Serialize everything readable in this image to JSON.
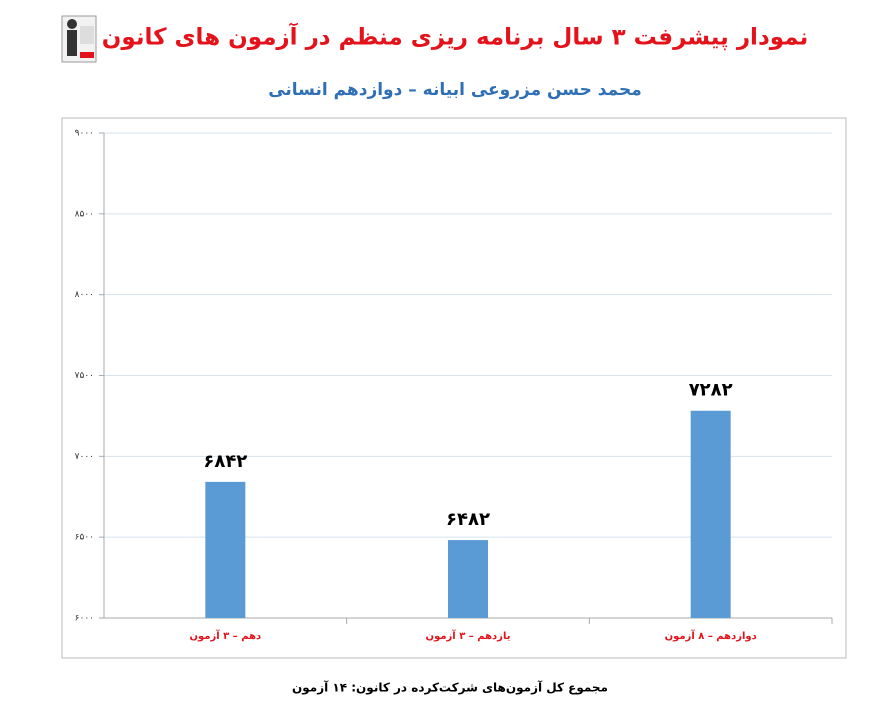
{
  "chart_data": {
    "type": "bar",
    "title": "نمودار پیشرفت ۳ سال برنامه ریزی منظم در آزمون های کانون",
    "subtitle": "محمد حسن مزروعی ابیانه – دوازدهم انسانی",
    "categories": [
      "دهم – ۳ آزمون",
      "یازدهم – ۳ آزمون",
      "دوازدهم – ۸ آزمون"
    ],
    "values": [
      6842,
      6482,
      7282
    ],
    "value_labels": [
      "۶۸۴۲",
      "۶۴۸۲",
      "۷۲۸۲"
    ],
    "color": "#5b9bd5",
    "ylim": [
      6000,
      9000
    ],
    "yticks": [
      {
        "value": 6000,
        "label": "۶۰۰۰"
      },
      {
        "value": 6500,
        "label": "۶۵۰۰"
      },
      {
        "value": 7000,
        "label": "۷۰۰۰"
      },
      {
        "value": 7500,
        "label": "۷۵۰۰"
      },
      {
        "value": 8000,
        "label": "۸۰۰۰"
      },
      {
        "value": 8500,
        "label": "۸۵۰۰"
      },
      {
        "value": 9000,
        "label": "۹۰۰۰"
      }
    ],
    "grid": true,
    "footnote": "مجموع کل آزمون‌های شرکت‌کرده در کانون: ۱۴ آزمون"
  }
}
